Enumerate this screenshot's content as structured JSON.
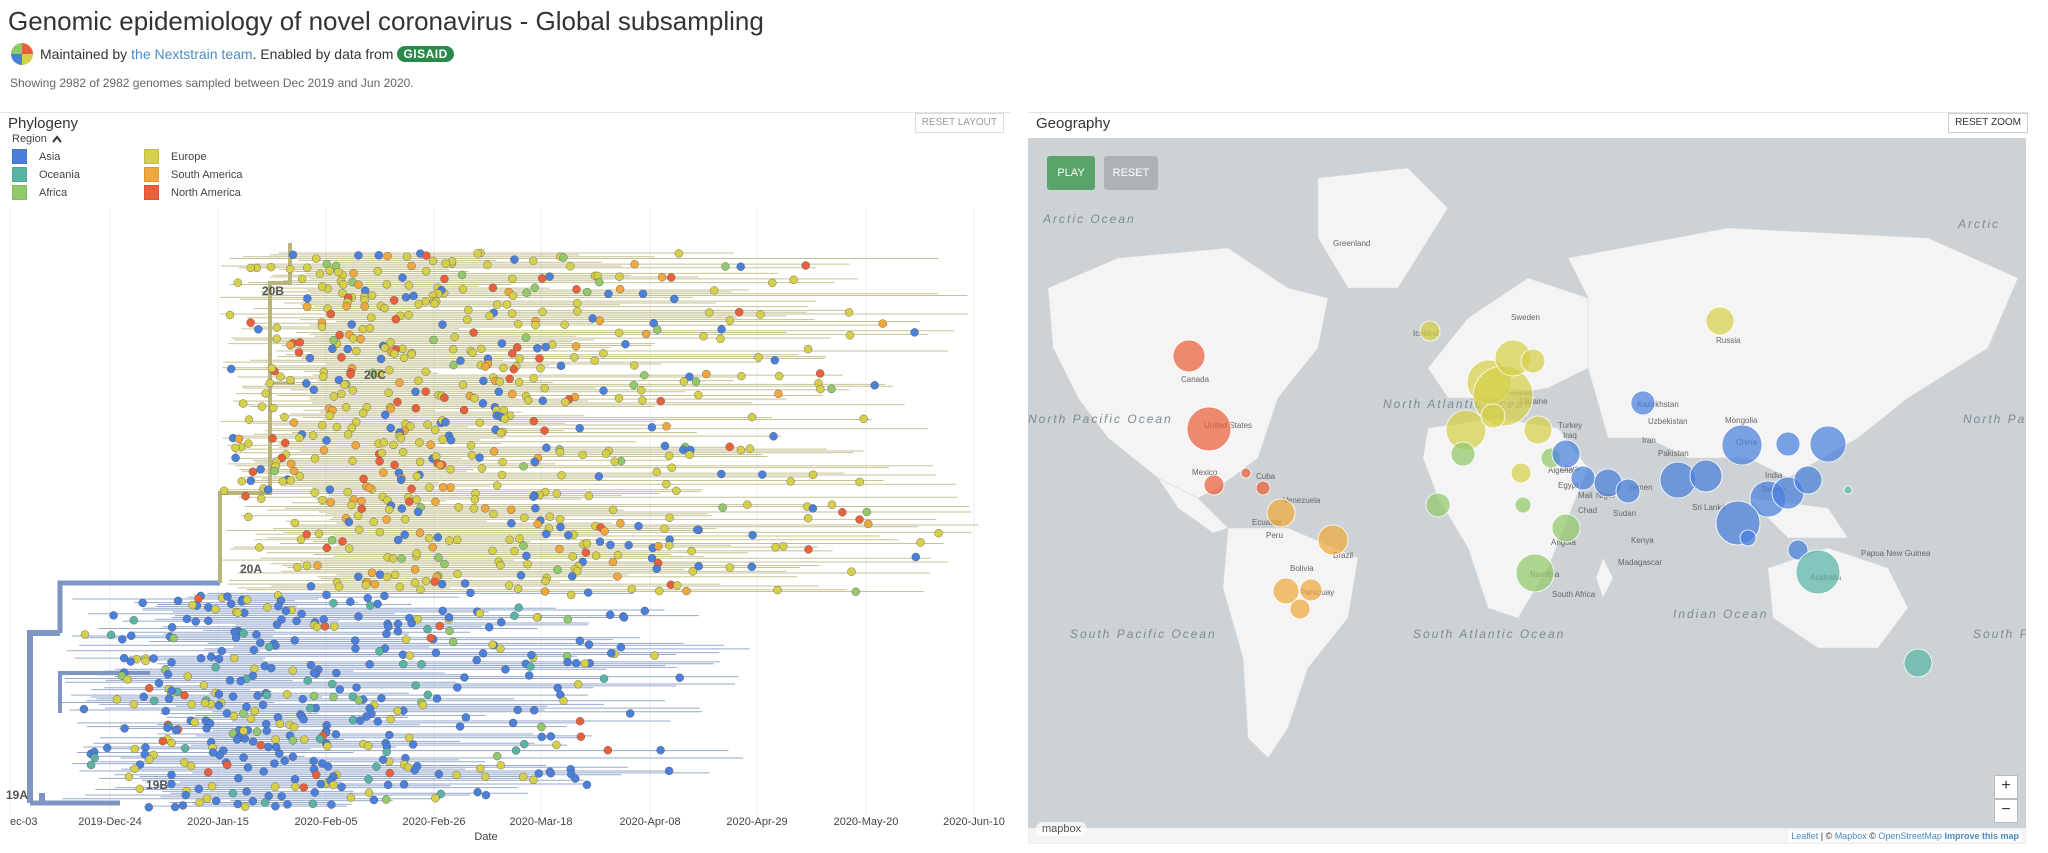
{
  "header": {
    "title": "Genomic epidemiology of novel coronavirus - Global subsampling",
    "maintained_prefix": "Maintained by",
    "maintainer_link": "the Nextstrain team",
    "enabled_text": ". Enabled by data from",
    "gisaid_badge": "GISAID",
    "counts": "Showing 2982 of 2982 genomes sampled between Dec 2019 and Jun 2020."
  },
  "phylogeny": {
    "title": "Phylogeny",
    "reset_layout": "RESET LAYOUT",
    "legend_title": "Region",
    "legend": [
      {
        "label": "Asia",
        "color": "#4a7fdc"
      },
      {
        "label": "Europe",
        "color": "#d6cf4a"
      },
      {
        "label": "Oceania",
        "color": "#5ab4a6"
      },
      {
        "label": "South America",
        "color": "#f0a73c"
      },
      {
        "label": "Africa",
        "color": "#92c96a"
      },
      {
        "label": "North America",
        "color": "#e9603a"
      }
    ],
    "clades": [
      "20B",
      "20C",
      "20A",
      "19A",
      "19B"
    ],
    "x_ticks": [
      "ec-03",
      "2019-Dec-24",
      "2020-Jan-15",
      "2020-Feb-05",
      "2020-Feb-26",
      "2020-Mar-18",
      "2020-Apr-08",
      "2020-Apr-29",
      "2020-May-20",
      "2020-Jun-10"
    ],
    "x_label": "Date"
  },
  "geography": {
    "title": "Geography",
    "reset_zoom": "RESET ZOOM",
    "play": "PLAY",
    "reset": "RESET",
    "zoom_in": "+",
    "zoom_out": "−",
    "mapbox": "mapbox",
    "attribution": {
      "leaflet": "Leaflet",
      "sep1": " | © ",
      "mapbox": "Mapbox",
      "sep2": " © ",
      "osm": "OpenStreetMap",
      "improve": "Improve this map"
    },
    "ocean_labels": [
      "Arctic Ocean",
      "Arctic",
      "North Pacific Ocean",
      "North Atlantic Ocean",
      "North Pacific Ocean",
      "South Pacific Ocean",
      "South Atlantic Ocean",
      "Indian Ocean",
      "South Pacific Ocean"
    ],
    "country_labels": [
      "Greenland",
      "Iceland",
      "Sweden",
      "Russia",
      "Canada",
      "United States",
      "Mexico",
      "Cuba",
      "Venezuela",
      "Ecuador",
      "Peru",
      "Brazil",
      "Bolivia",
      "Paraguay",
      "Kazakhstan",
      "Mongolia",
      "China",
      "India",
      "Iran",
      "Iraq",
      "Turkey",
      "Ukraine",
      "Belarus",
      "Uzbekistan",
      "Pakistan",
      "Algeria",
      "Libya",
      "Egypt",
      "Mali",
      "Niger",
      "Chad",
      "Sudan",
      "Yemen",
      "Kenya",
      "Angola",
      "Namibia",
      "South Africa",
      "Madagascar",
      "Australia",
      "Papua New Guinea",
      "Sri Lanka",
      "Taiwan"
    ]
  }
}
